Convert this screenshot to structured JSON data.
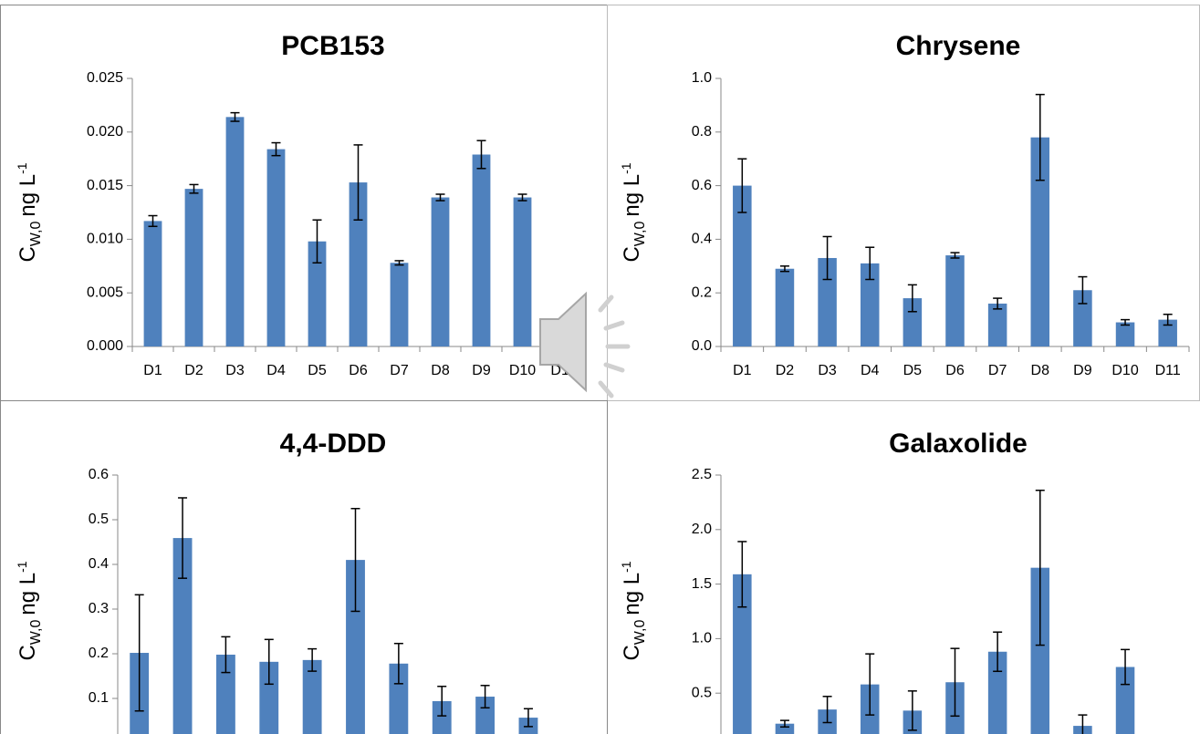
{
  "chart_data": [
    {
      "type": "bar",
      "title": "PCB153",
      "y_label": [
        "C",
        "W,0",
        "ng L",
        "-1"
      ],
      "color": "#4f81bd",
      "categories": [
        "D1",
        "D2",
        "D3",
        "D4",
        "D5",
        "D6",
        "D7",
        "D8",
        "D9",
        "D10",
        "D11"
      ],
      "values": [
        0.0117,
        0.0147,
        0.0214,
        0.0184,
        0.0098,
        0.0153,
        0.0078,
        0.0139,
        0.0179,
        0.0139,
        0.0003
      ],
      "errors": [
        0.0005,
        0.0004,
        0.0004,
        0.0006,
        0.002,
        0.0035,
        0.0002,
        0.0003,
        0.0013,
        0.0003,
        0.0001
      ],
      "ylim": [
        0,
        0.025
      ],
      "yticks": [
        {
          "value": 0,
          "label": "0.000"
        },
        0.005,
        {
          "value": 0.01,
          "label": "0.010"
        },
        0.015,
        {
          "value": 0.02,
          "label": "0.020"
        },
        0.025
      ]
    },
    {
      "type": "bar",
      "title": "Chrysene",
      "y_label": [
        "C",
        "W,0",
        "ng L",
        "-1"
      ],
      "color": "#4f81bd",
      "categories": [
        "D1",
        "D2",
        "D3",
        "D4",
        "D5",
        "D6",
        "D7",
        "D8",
        "D9",
        "D10",
        "D11"
      ],
      "values": [
        0.6,
        0.29,
        0.33,
        0.31,
        0.18,
        0.34,
        0.16,
        0.78,
        0.21,
        0.09,
        0.1
      ],
      "errors": [
        0.1,
        0.01,
        0.08,
        0.06,
        0.05,
        0.01,
        0.02,
        0.16,
        0.05,
        0.01,
        0.02
      ],
      "ylim": [
        0,
        1.0
      ],
      "yticks": [
        {
          "value": 0,
          "label": "0.0"
        },
        0.2,
        0.4,
        0.6,
        0.8,
        {
          "value": 1,
          "label": "1.0"
        }
      ]
    },
    {
      "type": "bar",
      "title": "4,4-DDD",
      "y_label": [
        "C",
        "W,0",
        "ng L",
        "-1"
      ],
      "color": "#4f81bd",
      "categories": [
        null,
        null,
        null,
        null,
        null,
        null,
        null,
        null,
        null,
        null,
        null
      ],
      "values": [
        0.202,
        0.459,
        0.198,
        0.182,
        0.186,
        0.41,
        0.178,
        0.094,
        0.104,
        0.057,
        null
      ],
      "errors": [
        0.13,
        0.09,
        0.04,
        0.05,
        0.025,
        0.115,
        0.045,
        0.033,
        0.025,
        0.02,
        null
      ],
      "ylim": [
        0,
        0.6
      ],
      "yticks": [
        0.1,
        0.2,
        0.3,
        0.4,
        0.5,
        0.6
      ]
    },
    {
      "type": "bar",
      "title": "Galaxolide",
      "y_label": [
        "C",
        "W,0",
        "ng L",
        "-1"
      ],
      "color": "#4f81bd",
      "categories": [
        null,
        null,
        null,
        null,
        null,
        null,
        null,
        null,
        null,
        null,
        null
      ],
      "values": [
        1.59,
        0.22,
        0.35,
        0.58,
        0.34,
        0.6,
        0.88,
        1.65,
        0.2,
        0.74,
        null
      ],
      "errors": [
        0.3,
        0.03,
        0.12,
        0.28,
        0.18,
        0.31,
        0.18,
        0.71,
        0.1,
        0.16,
        null
      ],
      "ylim": [
        0,
        2.5
      ],
      "yticks": [
        0.5,
        {
          "value": 1,
          "label": "1.0"
        },
        1.5,
        {
          "value": 2,
          "label": "2.0"
        },
        2.5
      ]
    }
  ]
}
